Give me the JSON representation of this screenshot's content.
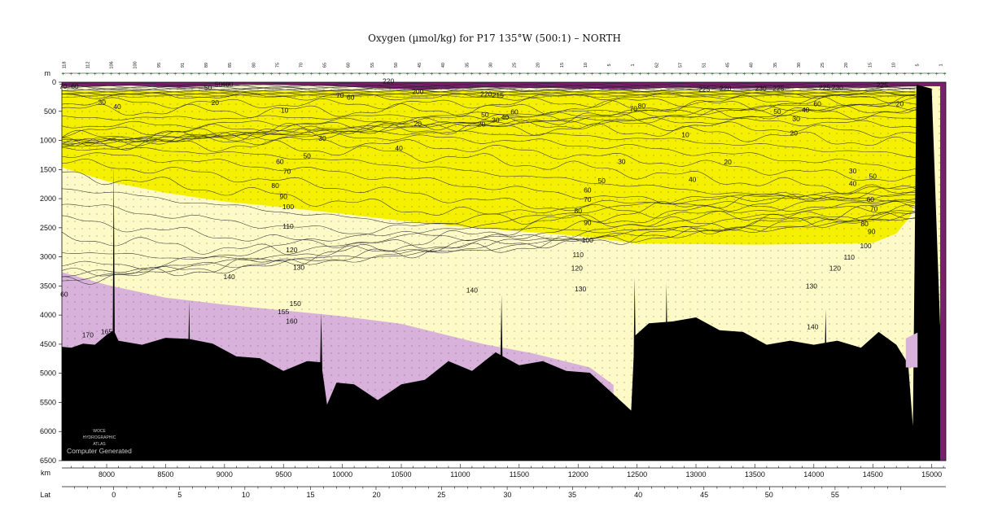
{
  "chart_data": {
    "type": "contour-section",
    "title": "Oxygen (µmol/kg) for P17 135°W (500:1) – NORTH",
    "depth_axis": {
      "label": "m",
      "range": [
        0,
        6500
      ],
      "ticks": [
        0,
        500,
        1000,
        1500,
        2000,
        2500,
        3000,
        3500,
        4000,
        4500,
        5000,
        5500,
        6000,
        6500
      ]
    },
    "distance_axis": {
      "label": "km",
      "range": [
        7620,
        15120
      ],
      "ticks": [
        8000,
        8500,
        9000,
        9500,
        10000,
        10500,
        11000,
        11500,
        12000,
        12500,
        13000,
        13500,
        14000,
        14500,
        15000
      ]
    },
    "latitude_axis": {
      "label": "Lat",
      "ticks": [
        {
          "km": 8060,
          "lat": 0
        },
        {
          "km": 8620,
          "lat": 5
        },
        {
          "km": 9180,
          "lat": 10
        },
        {
          "km": 9730,
          "lat": 15
        },
        {
          "km": 10290,
          "lat": 20
        },
        {
          "km": 10840,
          "lat": 25
        },
        {
          "km": 11400,
          "lat": 30
        },
        {
          "km": 11950,
          "lat": 35
        },
        {
          "km": 12510,
          "lat": 40
        },
        {
          "km": 13070,
          "lat": 45
        },
        {
          "km": 13620,
          "lat": 50
        },
        {
          "km": 14180,
          "lat": 55
        }
      ]
    },
    "station_labels": [
      "118",
      "112",
      "106",
      "100",
      "95",
      "91",
      "89",
      "85",
      "80",
      "75",
      "70",
      "65",
      "60",
      "55",
      "50",
      "45",
      "40",
      "35",
      "30",
      "25",
      "20",
      "15",
      "10",
      "5",
      "1",
      "62",
      "57",
      "51",
      "45",
      "40",
      "35",
      "30",
      "25",
      "20",
      "15",
      "10",
      "5",
      "1"
    ],
    "colors": {
      "surface": "#7a1f6e",
      "low_oxygen": "#f5f000",
      "mid_oxygen": "#fdfac8",
      "high_oxygen": "#d9b2dc",
      "bathymetry": "#000000"
    },
    "color_bands": [
      {
        "range": "0-100",
        "color": "#f5f000"
      },
      {
        "range": "100-150",
        "color": "#fdfac8"
      },
      {
        "range": ">150",
        "color": "#d9b2dc"
      },
      {
        "range": "surface >200",
        "color": "#7a1f6e"
      }
    ],
    "contour_labels": [
      {
        "v": "70",
        "km": 7630,
        "d": 100
      },
      {
        "v": "60",
        "km": 7730,
        "d": 100
      },
      {
        "v": "30",
        "km": 7960,
        "d": 370
      },
      {
        "v": "40",
        "km": 8090,
        "d": 450
      },
      {
        "v": "50",
        "km": 8860,
        "d": 120
      },
      {
        "v": "20",
        "km": 8920,
        "d": 380
      },
      {
        "v": "50",
        "km": 8950,
        "d": 60
      },
      {
        "v": "40",
        "km": 9010,
        "d": 60
      },
      {
        "v": "60",
        "km": 9040,
        "d": 60
      },
      {
        "v": "10",
        "km": 9510,
        "d": 510
      },
      {
        "v": "70",
        "km": 9980,
        "d": 250
      },
      {
        "v": "60",
        "km": 10070,
        "d": 290
      },
      {
        "v": "220",
        "km": 10390,
        "d": 10
      },
      {
        "v": "200",
        "km": 10640,
        "d": 190
      },
      {
        "v": "220",
        "km": 11220,
        "d": 230
      },
      {
        "v": "215",
        "km": 11320,
        "d": 250
      },
      {
        "v": "50",
        "km": 11210,
        "d": 590
      },
      {
        "v": "40",
        "km": 11380,
        "d": 630
      },
      {
        "v": "30",
        "km": 11300,
        "d": 680
      },
      {
        "v": "60",
        "km": 11460,
        "d": 540
      },
      {
        "v": "20",
        "km": 10640,
        "d": 740
      },
      {
        "v": "20",
        "km": 11180,
        "d": 750
      },
      {
        "v": "30",
        "km": 9830,
        "d": 990
      },
      {
        "v": "40",
        "km": 10480,
        "d": 1160
      },
      {
        "v": "60",
        "km": 9470,
        "d": 1390
      },
      {
        "v": "50",
        "km": 9700,
        "d": 1290
      },
      {
        "v": "70",
        "km": 9530,
        "d": 1560
      },
      {
        "v": "80",
        "km": 9430,
        "d": 1800
      },
      {
        "v": "90",
        "km": 9500,
        "d": 1990
      },
      {
        "v": "100",
        "km": 9540,
        "d": 2170
      },
      {
        "v": "110",
        "km": 9540,
        "d": 2500
      },
      {
        "v": "120",
        "km": 9570,
        "d": 2910
      },
      {
        "v": "130",
        "km": 9630,
        "d": 3210
      },
      {
        "v": "140",
        "km": 9040,
        "d": 3370
      },
      {
        "v": "150",
        "km": 9600,
        "d": 3830
      },
      {
        "v": "155",
        "km": 9500,
        "d": 3970
      },
      {
        "v": "160",
        "km": 9570,
        "d": 4130
      },
      {
        "v": "165",
        "km": 8000,
        "d": 4310
      },
      {
        "v": "170",
        "km": 7840,
        "d": 4370
      },
      {
        "v": "60",
        "km": 7640,
        "d": 3670
      },
      {
        "v": "70",
        "km": 12470,
        "d": 480
      },
      {
        "v": "80",
        "km": 12540,
        "d": 430
      },
      {
        "v": "30",
        "km": 12370,
        "d": 1390
      },
      {
        "v": "50",
        "km": 12200,
        "d": 1720
      },
      {
        "v": "60",
        "km": 12080,
        "d": 1880
      },
      {
        "v": "70",
        "km": 12080,
        "d": 2040
      },
      {
        "v": "80",
        "km": 12000,
        "d": 2240
      },
      {
        "v": "90",
        "km": 12080,
        "d": 2440
      },
      {
        "v": "100",
        "km": 12080,
        "d": 2740
      },
      {
        "v": "110",
        "km": 12000,
        "d": 2990
      },
      {
        "v": "120",
        "km": 11990,
        "d": 3220
      },
      {
        "v": "130",
        "km": 12020,
        "d": 3580
      },
      {
        "v": "140",
        "km": 11100,
        "d": 3600
      },
      {
        "v": "225",
        "km": 13070,
        "d": 150
      },
      {
        "v": "220",
        "km": 13250,
        "d": 130
      },
      {
        "v": "230",
        "km": 13550,
        "d": 130
      },
      {
        "v": "225",
        "km": 13700,
        "d": 130
      },
      {
        "v": "225",
        "km": 14090,
        "d": 120
      },
      {
        "v": "230",
        "km": 14200,
        "d": 120
      },
      {
        "v": "225",
        "km": 14580,
        "d": 80
      },
      {
        "v": "10",
        "km": 12910,
        "d": 930
      },
      {
        "v": "20",
        "km": 13270,
        "d": 1400
      },
      {
        "v": "40",
        "km": 12970,
        "d": 1700
      },
      {
        "v": "20",
        "km": 13830,
        "d": 900
      },
      {
        "v": "50",
        "km": 13690,
        "d": 530
      },
      {
        "v": "40",
        "km": 13930,
        "d": 500
      },
      {
        "v": "30",
        "km": 13850,
        "d": 660
      },
      {
        "v": "60",
        "km": 14030,
        "d": 400
      },
      {
        "v": "20",
        "km": 14730,
        "d": 400
      },
      {
        "v": "30",
        "km": 14330,
        "d": 1550
      },
      {
        "v": "40",
        "km": 14330,
        "d": 1770
      },
      {
        "v": "50",
        "km": 14500,
        "d": 1640
      },
      {
        "v": "60",
        "km": 14480,
        "d": 2040
      },
      {
        "v": "70",
        "km": 14510,
        "d": 2200
      },
      {
        "v": "80",
        "km": 14430,
        "d": 2460
      },
      {
        "v": "90",
        "km": 14490,
        "d": 2590
      },
      {
        "v": "100",
        "km": 14440,
        "d": 2840
      },
      {
        "v": "110",
        "km": 14300,
        "d": 3030
      },
      {
        "v": "120",
        "km": 14180,
        "d": 3220
      },
      {
        "v": "130",
        "km": 13980,
        "d": 3530
      },
      {
        "v": "140",
        "km": 13990,
        "d": 4230
      }
    ]
  },
  "logo": {
    "line1": "WOCE",
    "line2": "HYDROGRAPHIC",
    "line3": "ATLAS",
    "caption": "Computer Generated"
  }
}
